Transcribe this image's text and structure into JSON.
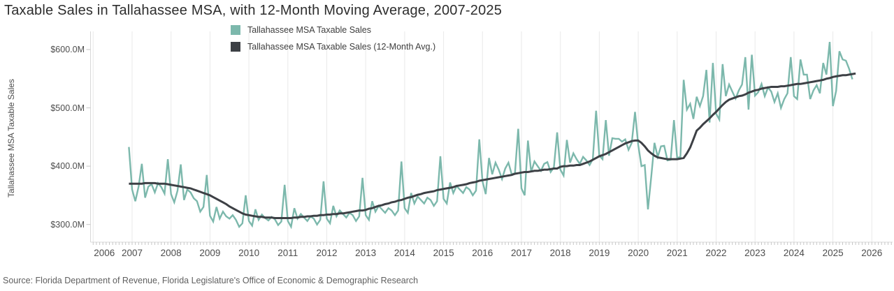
{
  "title": "Taxable Sales in Tallahassee MSA, with 12-Month Moving Average, 2007-2025",
  "source": {
    "text": "Source: Florida Department of Revenue, Florida Legislature's Office of Economic & Demographic Research"
  },
  "colors": {
    "background": "#ffffff",
    "grid": "#e9e9e9",
    "axis": "#d8d8d8",
    "tick": "#c6c6c6",
    "tick_text": "#4d4d4d",
    "title_text": "#2d2d2d",
    "source_text": "#5f5f5f",
    "series_teal": "#7cb8ac",
    "series_dark": "#3d4045"
  },
  "chart_data": {
    "type": "line",
    "title": "Taxable Sales in Tallahassee MSA, with 12-Month Moving Average, 2007-2025",
    "xlabel": "",
    "ylabel": "Tallahassee MSA Taxable Sales",
    "units": "USD millions",
    "grid": "vertical-yearly",
    "legend_position": "top-inside-left",
    "xlim": [
      2006,
      2026.55
    ],
    "ylim": [
      266,
      631
    ],
    "y_axis": {
      "ticks": [
        {
          "label": "$600.0M",
          "value": 600
        },
        {
          "label": "$500.0M",
          "value": 500
        },
        {
          "label": "$400.0M",
          "value": 400
        },
        {
          "label": "$300.0M",
          "value": 300
        }
      ]
    },
    "x_axis": {
      "years": [
        2006,
        2007,
        2008,
        2009,
        2010,
        2011,
        2012,
        2013,
        2014,
        2015,
        2016,
        2017,
        2018,
        2019,
        2020,
        2021,
        2022,
        2023,
        2024,
        2025,
        2026
      ],
      "minor_tick": "monthly"
    },
    "series": [
      {
        "name": "Tallahassee MSA Taxable Sales",
        "color": "#7cb8ac",
        "width": 2.4,
        "start": "2006-12",
        "frequency": "monthly",
        "values": [
          433,
          360,
          340,
          365,
          404,
          346,
          365,
          369,
          355,
          371,
          364,
          353,
          412,
          352,
          338,
          358,
          403,
          342,
          360,
          355,
          345,
          340,
          322,
          330,
          385,
          315,
          305,
          330,
          310,
          322,
          314,
          310,
          316,
          308,
          296,
          302,
          350,
          306,
          298,
          326,
          308,
          317,
          311,
          307,
          313,
          309,
          299,
          305,
          368,
          306,
          296,
          328,
          310,
          318,
          312,
          306,
          314,
          310,
          300,
          308,
          374,
          310,
          302,
          332,
          314,
          324,
          318,
          312,
          320,
          316,
          306,
          314,
          380,
          316,
          308,
          340,
          322,
          332,
          326,
          320,
          328,
          324,
          316,
          324,
          408,
          328,
          320,
          354,
          336,
          348,
          342,
          336,
          346,
          342,
          332,
          340,
          417,
          344,
          336,
          372,
          354,
          366,
          360,
          354,
          364,
          360,
          350,
          358,
          446,
          374,
          352,
          414,
          386,
          406,
          394,
          378,
          396,
          406,
          386,
          388,
          464,
          362,
          350,
          444,
          390,
          408,
          400,
          392,
          404,
          407,
          390,
          398,
          458,
          394,
          384,
          445,
          406,
          422,
          412,
          404,
          416,
          410,
          402,
          412,
          495,
          418,
          412,
          479,
          418,
          448,
          447,
          447,
          442,
          446,
          428,
          440,
          493,
          436,
          400,
          402,
          326,
          382,
          440,
          416,
          434,
          435,
          410,
          411,
          479,
          414,
          416,
          548,
          497,
          507,
          481,
          519,
          503,
          520,
          565,
          475,
          577,
          490,
          480,
          575,
          520,
          540,
          528,
          516,
          530,
          540,
          587,
          497,
          591,
          521,
          527,
          541,
          520,
          535,
          528,
          510,
          525,
          500,
          515,
          525,
          587,
          520,
          515,
          583,
          557,
          557,
          515,
          530,
          539,
          525,
          577,
          557,
          613,
          503,
          529,
          597,
          583,
          581,
          567,
          549
        ]
      },
      {
        "name": "Tallahassee MSA Taxable Sales (12-Month Avg.)",
        "color": "#3d4045",
        "width": 3,
        "start": "2006-12",
        "frequency": "monthly",
        "values": [
          370,
          370,
          370,
          370,
          370,
          371,
          371,
          371,
          371,
          370,
          370,
          370,
          369,
          368,
          367,
          366,
          365,
          364,
          363,
          362,
          360,
          358,
          356,
          354,
          352,
          350,
          347,
          344,
          341,
          338,
          335,
          331,
          328,
          325,
          322,
          319,
          317,
          316,
          315,
          314,
          313,
          313,
          312,
          312,
          312,
          311,
          311,
          311,
          311,
          311,
          311,
          312,
          312,
          313,
          313,
          314,
          314,
          315,
          315,
          316,
          316,
          317,
          317,
          318,
          318,
          319,
          319,
          320,
          321,
          322,
          323,
          324,
          324,
          325,
          327,
          328,
          330,
          332,
          333,
          335,
          336,
          338,
          339,
          341,
          342,
          344,
          346,
          347,
          349,
          351,
          352,
          354,
          355,
          356,
          357,
          359,
          360,
          361,
          362,
          363,
          364,
          366,
          367,
          368,
          369,
          371,
          372,
          373,
          375,
          376,
          377,
          378,
          379,
          380,
          381,
          382,
          383,
          384,
          385,
          387,
          388,
          389,
          390,
          390,
          391,
          392,
          392,
          393,
          394,
          394,
          395,
          396,
          396,
          399,
          400,
          400,
          401,
          401,
          402,
          402,
          404,
          406,
          408,
          411,
          414,
          417,
          419,
          421,
          424,
          427,
          430,
          433,
          436,
          439,
          441,
          443,
          444,
          444,
          440,
          434,
          427,
          422,
          418,
          415,
          414,
          413,
          412,
          412,
          412,
          412,
          413,
          414,
          422,
          432,
          446,
          461,
          466,
          472,
          477,
          482,
          488,
          493,
          499,
          505,
          510,
          514,
          516,
          518,
          520,
          521,
          523,
          526,
          528,
          530,
          531,
          533,
          534,
          535,
          536,
          536,
          536,
          537,
          537,
          538,
          539,
          540,
          541,
          541,
          542,
          543,
          544,
          545,
          546,
          547,
          548,
          550,
          551,
          553,
          554,
          555,
          556,
          556,
          557,
          558,
          559
        ]
      }
    ]
  }
}
